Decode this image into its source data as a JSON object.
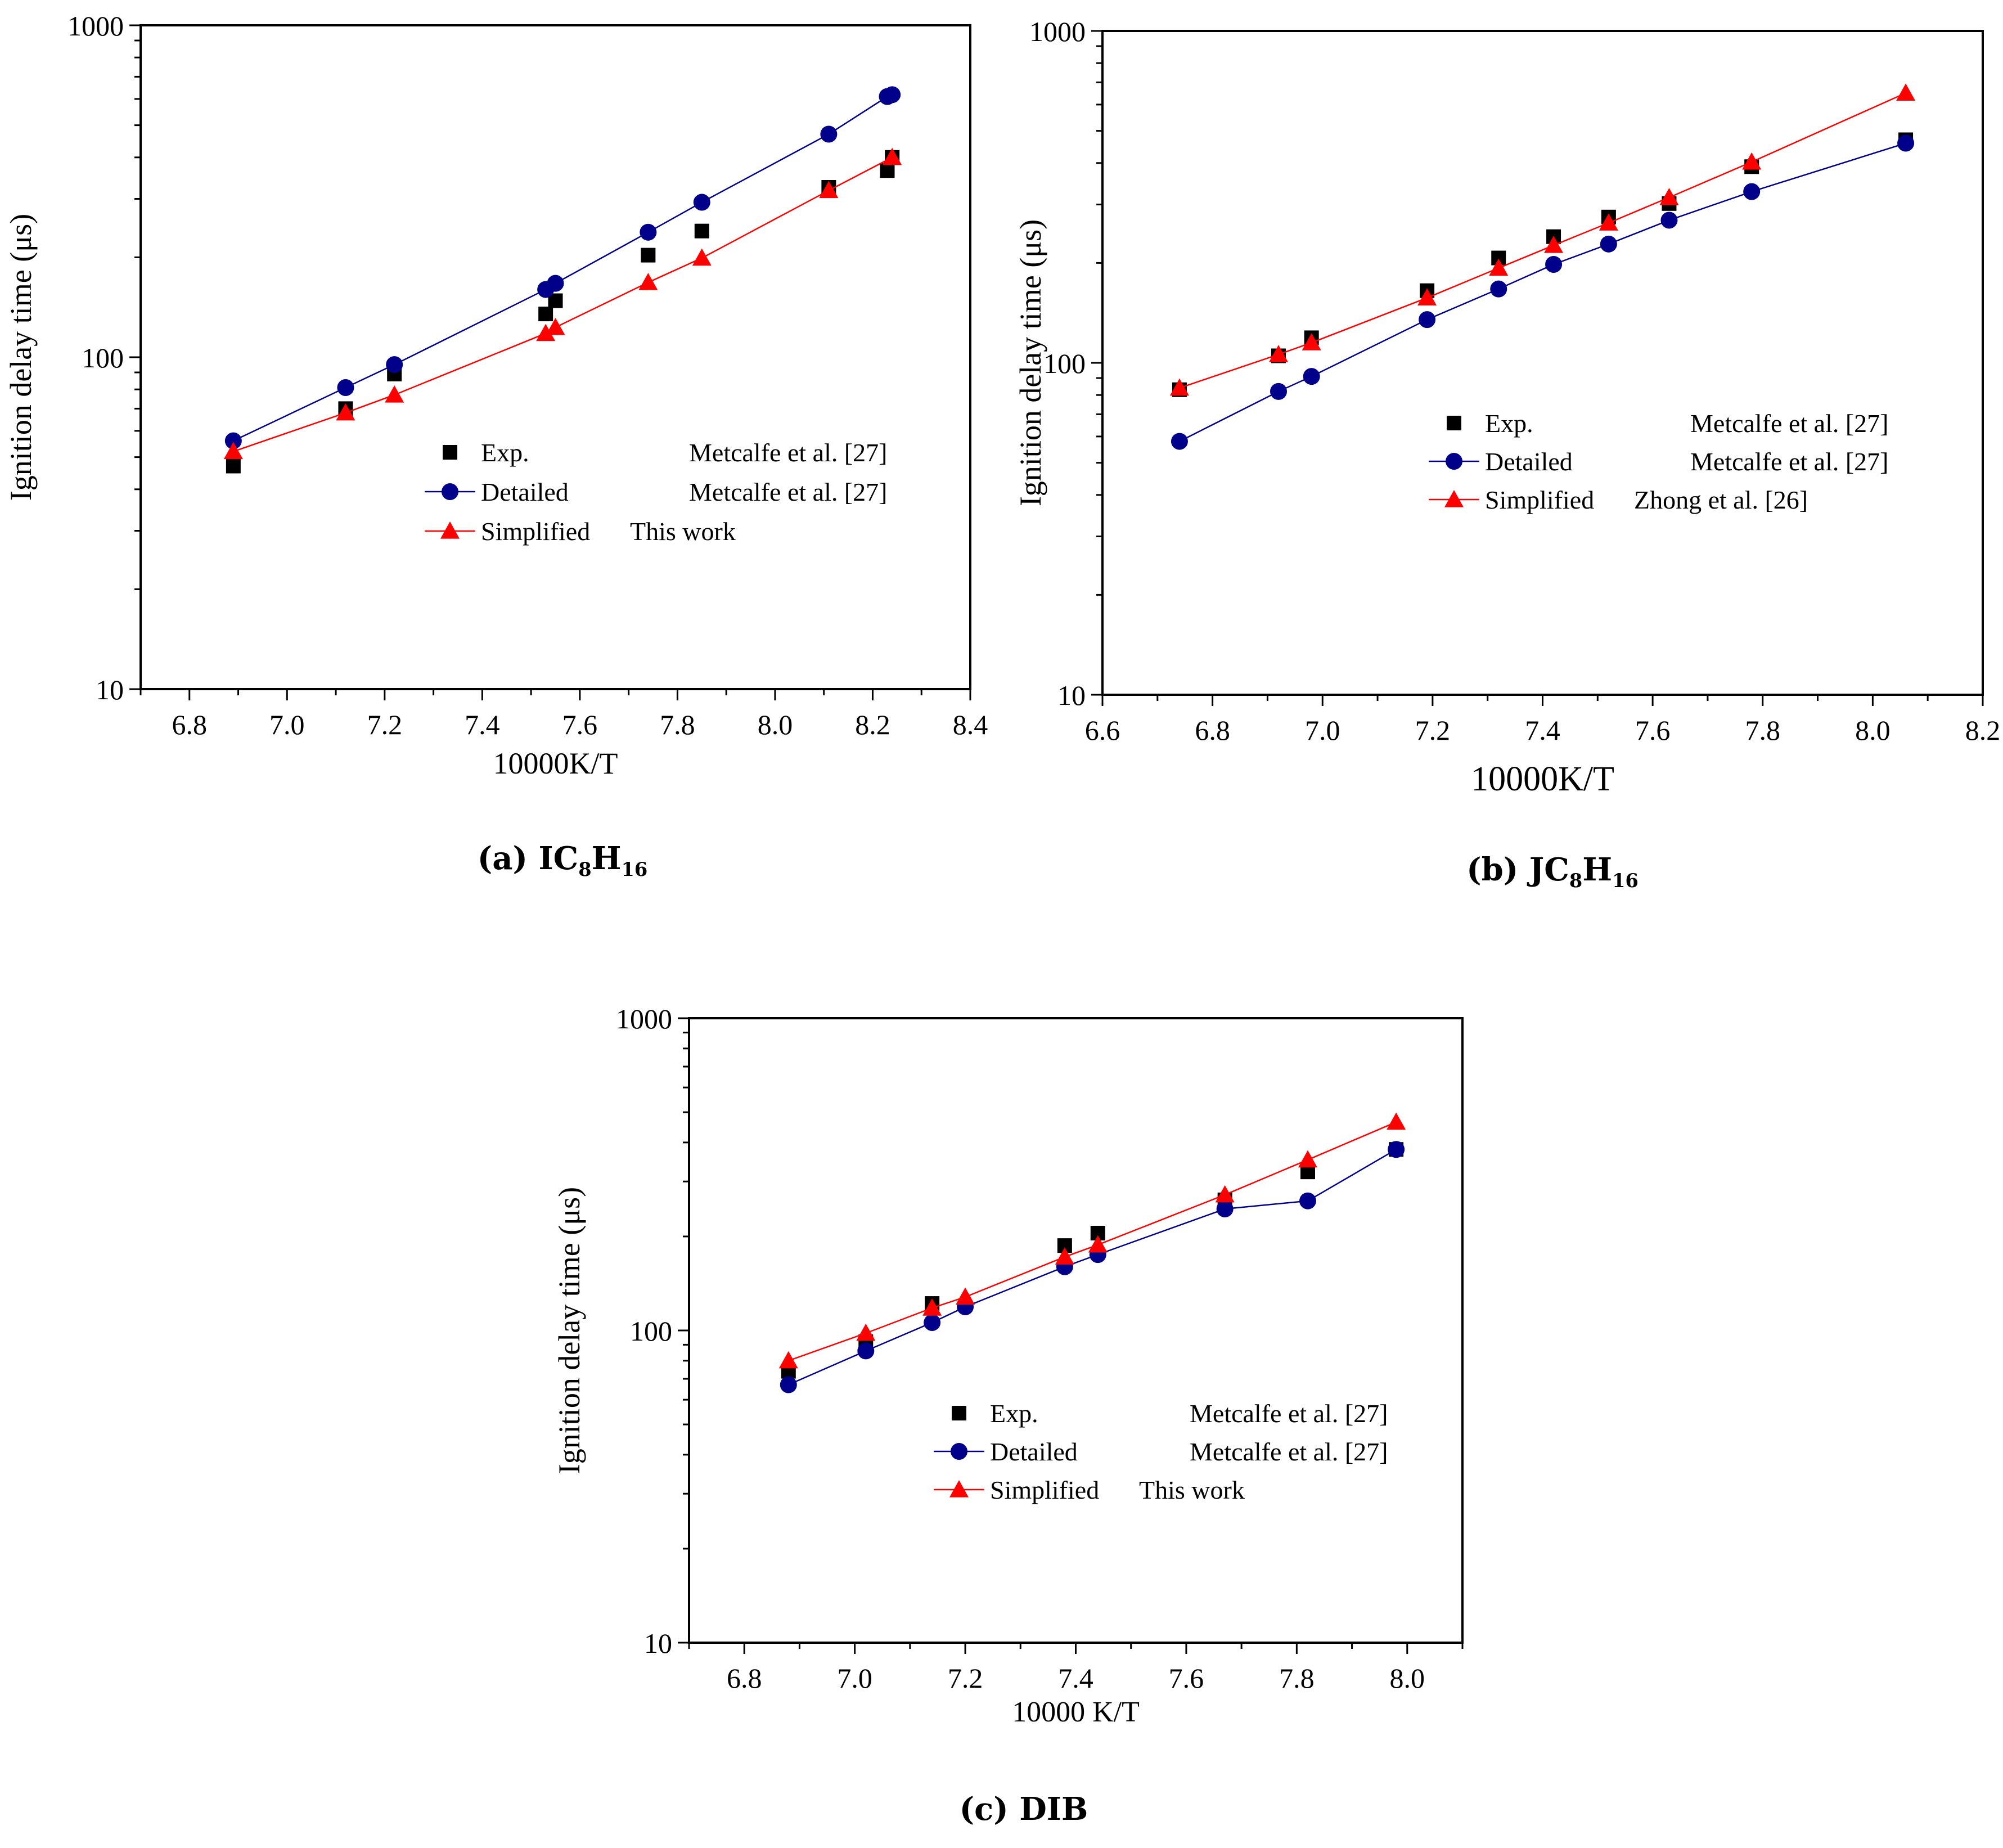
{
  "chart_data": [
    {
      "type": "scatter",
      "panel_caption": {
        "prefix": "(a) IC",
        "sub1": "8",
        "mid": "H",
        "sub2": "16"
      },
      "xlabel": "10000K/T",
      "ylabel": "Ignition delay time (μs)",
      "x_scale": "linear",
      "y_scale": "log",
      "xlim": [
        6.7,
        8.4
      ],
      "ylim": [
        10,
        1000
      ],
      "x_ticks": [
        6.8,
        7.0,
        7.2,
        7.4,
        7.6,
        7.8,
        8.0,
        8.2,
        8.4
      ],
      "x_tick_labels": [
        "6.8",
        "7.0",
        "7.2",
        "7.4",
        "7.6",
        "7.8",
        "8.0",
        "8.2",
        "8.4"
      ],
      "y_ticks": [
        10,
        100,
        1000
      ],
      "y_tick_labels": [
        "10",
        "100",
        "1000"
      ],
      "legend_position": "center-right",
      "series": [
        {
          "name": "Exp.",
          "source": "Metcalfe et al. [27]",
          "marker": "square",
          "color": "#000000",
          "line": false,
          "x": [
            6.89,
            7.12,
            7.22,
            7.53,
            7.55,
            7.74,
            7.85,
            8.11,
            8.23,
            8.24
          ],
          "y": [
            47,
            70,
            89,
            135,
            148,
            203,
            240,
            325,
            365,
            400
          ]
        },
        {
          "name": "Detailed",
          "source": "Metcalfe et al. [27]",
          "marker": "circle",
          "color": "#00008b",
          "line": true,
          "x": [
            6.89,
            7.12,
            7.22,
            7.53,
            7.55,
            7.74,
            7.85,
            8.11,
            8.23,
            8.24
          ],
          "y": [
            56,
            81,
            95,
            160,
            167,
            238,
            293,
            470,
            610,
            618
          ]
        },
        {
          "name": "Simplified",
          "source": "This work",
          "marker": "triangle",
          "color": "#ff0000",
          "line": true,
          "x": [
            6.89,
            7.12,
            7.22,
            7.53,
            7.55,
            7.74,
            7.85,
            8.11,
            8.24
          ],
          "y": [
            52,
            68,
            77,
            118,
            123,
            168,
            199,
            318,
            400
          ]
        }
      ]
    },
    {
      "type": "scatter",
      "panel_caption": {
        "prefix": "(b) JC",
        "sub1": "8",
        "mid": "H",
        "sub2": "16"
      },
      "xlabel": "10000K/T",
      "ylabel": "Ignition delay time (μs)",
      "x_scale": "linear",
      "y_scale": "log",
      "xlim": [
        6.6,
        8.2
      ],
      "ylim": [
        10,
        1000
      ],
      "x_ticks": [
        6.6,
        6.8,
        7.0,
        7.2,
        7.4,
        7.6,
        7.8,
        8.0,
        8.2
      ],
      "x_tick_labels": [
        "6.6",
        "6.8",
        "7.0",
        "7.2",
        "7.4",
        "7.6",
        "7.8",
        "8.0",
        "8.2"
      ],
      "y_ticks": [
        10,
        100,
        1000
      ],
      "y_tick_labels": [
        "10",
        "100",
        "1000"
      ],
      "legend_position": "center-right",
      "series": [
        {
          "name": "Exp.",
          "source": "Metcalfe et al. [27]",
          "marker": "square",
          "color": "#000000",
          "line": false,
          "x": [
            6.74,
            6.92,
            6.98,
            7.19,
            7.32,
            7.42,
            7.52,
            7.63,
            7.78,
            8.06
          ],
          "y": [
            83,
            105,
            119,
            165,
            207,
            240,
            275,
            302,
            390,
            470
          ]
        },
        {
          "name": "Detailed",
          "source": "Metcalfe et al. [27]",
          "marker": "circle",
          "color": "#00008b",
          "line": true,
          "x": [
            6.74,
            6.92,
            6.98,
            7.19,
            7.32,
            7.42,
            7.52,
            7.63,
            7.78,
            8.06
          ],
          "y": [
            58,
            82,
            91,
            135,
            167,
            198,
            228,
            269,
            328,
            459
          ]
        },
        {
          "name": "Simplified",
          "source": "Zhong et al. [26]",
          "marker": "triangle",
          "color": "#ff0000",
          "line": true,
          "x": [
            6.74,
            6.92,
            6.98,
            7.19,
            7.32,
            7.42,
            7.52,
            7.63,
            7.78,
            8.06
          ],
          "y": [
            84,
            106,
            115,
            157,
            193,
            226,
            264,
            315,
            403,
            650
          ]
        }
      ]
    },
    {
      "type": "scatter",
      "panel_caption": {
        "prefix": "(c) DIB",
        "sub1": "",
        "mid": "",
        "sub2": ""
      },
      "xlabel": "10000 K/T",
      "ylabel": "Ignition delay time (μs)",
      "x_scale": "linear",
      "y_scale": "log",
      "xlim": [
        6.7,
        8.1
      ],
      "ylim": [
        10,
        1000
      ],
      "x_ticks": [
        6.8,
        7.0,
        7.2,
        7.4,
        7.6,
        7.8,
        8.0
      ],
      "x_tick_labels": [
        "6.8",
        "7.0",
        "7.2",
        "7.4",
        "7.6",
        "7.8",
        "8.0"
      ],
      "y_ticks": [
        10,
        100,
        1000
      ],
      "y_tick_labels": [
        "10",
        "100",
        "1000"
      ],
      "legend_position": "center-right",
      "series": [
        {
          "name": "Exp.",
          "source": "Metcalfe et al. [27]",
          "marker": "square",
          "color": "#000000",
          "line": false,
          "x": [
            6.88,
            7.02,
            7.14,
            7.38,
            7.44,
            7.67,
            7.82,
            7.98
          ],
          "y": [
            74,
            92,
            122,
            187,
            205,
            262,
            322,
            380
          ]
        },
        {
          "name": "Detailed",
          "source": "Metcalfe et al. [27]",
          "marker": "circle",
          "color": "#00008b",
          "line": true,
          "x": [
            6.88,
            7.02,
            7.14,
            7.2,
            7.38,
            7.44,
            7.67,
            7.82,
            7.98
          ],
          "y": [
            67,
            86,
            106,
            119,
            160,
            175,
            245,
            260,
            380
          ]
        },
        {
          "name": "Simplified",
          "source": "This work",
          "marker": "triangle",
          "color": "#ff0000",
          "line": true,
          "x": [
            6.88,
            7.02,
            7.14,
            7.2,
            7.38,
            7.44,
            7.67,
            7.82,
            7.98
          ],
          "y": [
            80,
            98,
            118,
            128,
            172,
            188,
            272,
            352,
            465
          ]
        }
      ]
    }
  ]
}
